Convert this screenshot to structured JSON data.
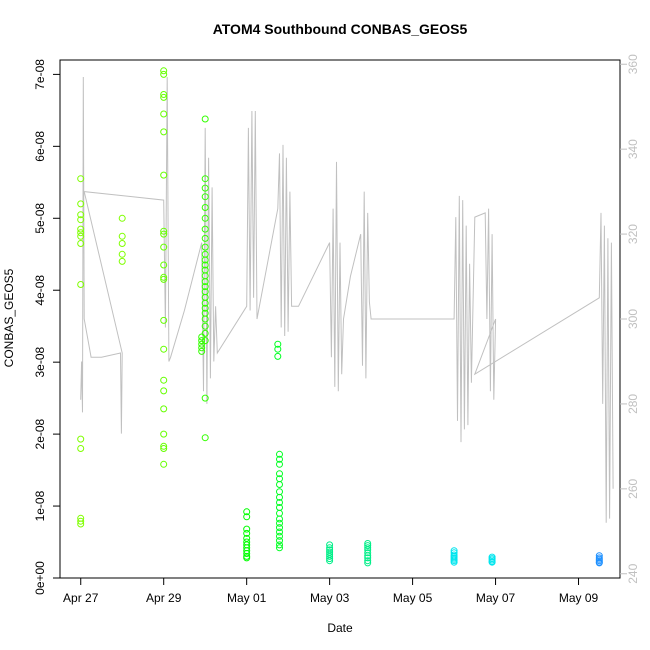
{
  "chart_data": {
    "type": "scatter",
    "title": "ATOM4 Southbound CONBAS_GEOS5",
    "xlabel": "Date",
    "ylabel": "CONBAS_GEOS5",
    "x_ticks": [
      "Apr 27",
      "Apr 29",
      "May 01",
      "May 03",
      "May 05",
      "May 07",
      "May 09"
    ],
    "y_ticks": [
      "0e+00",
      "1e-08",
      "2e-08",
      "3e-08",
      "4e-08",
      "5e-08",
      "6e-08",
      "7e-08"
    ],
    "y2_ticks": [
      "240",
      "260",
      "280",
      "300",
      "320",
      "340",
      "360"
    ],
    "xlim": [
      "2018-04-26T12:00",
      "2018-05-10T00:00"
    ],
    "ylim": [
      0,
      7.2e-08
    ],
    "y2lim": [
      239,
      361
    ],
    "grid": false,
    "secondary_series": {
      "color": "#c0c0c0",
      "axis": "right",
      "points": [
        [
          "2018-04-27T00:00",
          281
        ],
        [
          "2018-04-27T00:30",
          290
        ],
        [
          "2018-04-27T01:00",
          278
        ],
        [
          "2018-04-27T01:30",
          357
        ],
        [
          "2018-04-27T02:00",
          300
        ],
        [
          "2018-04-27T06:00",
          291
        ],
        [
          "2018-04-27T12:00",
          291
        ],
        [
          "2018-04-27T23:00",
          292
        ],
        [
          "2018-04-27T23:30",
          273
        ],
        [
          "2018-04-28T00:00",
          292
        ],
        [
          "2018-04-27T02:00",
          330
        ],
        [
          "2018-04-29T00:00",
          328
        ],
        [
          "2018-04-29T01:00",
          298
        ],
        [
          "2018-04-29T02:00",
          357
        ],
        [
          "2018-04-29T03:00",
          290
        ],
        [
          "2018-04-29T04:00",
          291
        ],
        [
          "2018-04-29T12:00",
          302
        ],
        [
          "2018-04-29T22:00",
          318
        ],
        [
          "2018-04-29T23:00",
          283
        ],
        [
          "2018-04-30T00:00",
          345
        ],
        [
          "2018-04-30T01:00",
          280
        ],
        [
          "2018-04-30T02:00",
          338
        ],
        [
          "2018-04-30T03:00",
          286
        ],
        [
          "2018-04-30T04:00",
          331
        ],
        [
          "2018-04-30T05:00",
          290
        ],
        [
          "2018-04-30T06:00",
          303
        ],
        [
          "2018-04-30T07:00",
          292
        ],
        [
          "2018-05-01T00:00",
          303
        ],
        [
          "2018-05-01T01:00",
          345
        ],
        [
          "2018-05-01T02:00",
          302
        ],
        [
          "2018-05-01T03:00",
          349
        ],
        [
          "2018-05-01T04:00",
          305
        ],
        [
          "2018-05-01T05:00",
          349
        ],
        [
          "2018-05-01T06:00",
          300
        ],
        [
          "2018-05-01T12:00",
          313
        ],
        [
          "2018-05-01T18:00",
          326
        ],
        [
          "2018-05-01T19:00",
          339
        ],
        [
          "2018-05-01T20:00",
          298
        ],
        [
          "2018-05-01T21:00",
          341
        ],
        [
          "2018-05-01T22:00",
          296
        ],
        [
          "2018-05-01T23:00",
          338
        ],
        [
          "2018-05-02T00:00",
          297
        ],
        [
          "2018-05-02T01:00",
          330
        ],
        [
          "2018-05-02T02:00",
          303
        ],
        [
          "2018-05-02T06:00",
          303
        ],
        [
          "2018-05-03T00:00",
          318
        ],
        [
          "2018-05-03T01:00",
          291
        ],
        [
          "2018-05-03T02:00",
          326
        ],
        [
          "2018-05-03T03:00",
          284
        ],
        [
          "2018-05-03T04:00",
          337
        ],
        [
          "2018-05-03T05:00",
          283
        ],
        [
          "2018-05-03T06:00",
          318
        ],
        [
          "2018-05-03T07:00",
          287
        ],
        [
          "2018-05-03T08:00",
          300
        ],
        [
          "2018-05-03T12:00",
          310
        ],
        [
          "2018-05-03T18:00",
          320
        ],
        [
          "2018-05-03T19:00",
          289
        ],
        [
          "2018-05-03T20:00",
          330
        ],
        [
          "2018-05-03T21:00",
          286
        ],
        [
          "2018-05-03T22:00",
          325
        ],
        [
          "2018-05-03T23:00",
          304
        ],
        [
          "2018-05-04T00:00",
          300
        ],
        [
          "2018-05-06T00:00",
          300
        ],
        [
          "2018-05-06T01:00",
          324
        ],
        [
          "2018-05-06T02:00",
          276
        ],
        [
          "2018-05-06T03:00",
          329
        ],
        [
          "2018-05-06T04:00",
          271
        ],
        [
          "2018-05-06T05:00",
          328
        ],
        [
          "2018-05-06T06:00",
          274
        ],
        [
          "2018-05-06T07:00",
          322
        ],
        [
          "2018-05-06T08:00",
          275
        ],
        [
          "2018-05-06T09:00",
          313
        ],
        [
          "2018-05-06T10:00",
          285
        ],
        [
          "2018-05-06T12:00",
          324
        ],
        [
          "2018-05-06T18:00",
          325
        ],
        [
          "2018-05-06T19:00",
          300
        ],
        [
          "2018-05-06T20:00",
          326
        ],
        [
          "2018-05-06T21:00",
          283
        ],
        [
          "2018-05-06T22:00",
          320
        ],
        [
          "2018-05-06T23:00",
          281
        ],
        [
          "2018-05-07T00:00",
          300
        ],
        [
          "2018-05-06T12:00",
          287
        ],
        [
          "2018-05-09T12:00",
          305
        ],
        [
          "2018-05-09T13:00",
          325
        ],
        [
          "2018-05-09T14:00",
          280
        ],
        [
          "2018-05-09T15:00",
          322
        ],
        [
          "2018-05-09T16:00",
          252
        ],
        [
          "2018-05-09T17:00",
          319
        ],
        [
          "2018-05-09T18:00",
          253
        ],
        [
          "2018-05-09T19:00",
          318
        ],
        [
          "2018-05-09T20:00",
          260
        ]
      ]
    },
    "scatter_groups": [
      {
        "color": "#7fff00",
        "x": "2018-04-27T00:00",
        "y": [
          5.55e-08,
          5.2e-08,
          5.05e-08,
          4.98e-08,
          4.85e-08,
          4.8e-08,
          4.75e-08,
          4.65e-08,
          4.08e-08,
          1.93e-08,
          1.8e-08,
          8.3e-09,
          7.9e-09,
          7.5e-09
        ]
      },
      {
        "color": "#7fff00",
        "x": "2018-04-28T00:00",
        "y": [
          5e-08,
          4.75e-08,
          4.65e-08,
          4.5e-08,
          4.4e-08
        ]
      },
      {
        "color": "#66ff00",
        "x": "2018-04-29T00:00",
        "y": [
          7.05e-08,
          7e-08,
          6.72e-08,
          6.68e-08,
          6.45e-08,
          6.2e-08,
          5.6e-08,
          4.82e-08,
          4.78e-08,
          4.6e-08,
          4.35e-08,
          4.18e-08,
          4.15e-08,
          3.58e-08,
          3.18e-08,
          2.75e-08,
          2.6e-08,
          2.35e-08,
          2e-08,
          1.83e-08,
          1.8e-08,
          1.58e-08
        ]
      },
      {
        "color": "#33ff00",
        "x": "2018-04-29T22:00",
        "y": [
          3.35e-08,
          3.3e-08,
          3.25e-08,
          3.2e-08,
          3.15e-08
        ]
      },
      {
        "color": "#33ff00",
        "x": "2018-04-30T00:00",
        "y": [
          6.38e-08,
          5.55e-08,
          5.42e-08,
          5.3e-08,
          5.15e-08,
          5e-08,
          4.85e-08,
          4.72e-08,
          4.6e-08,
          4.5e-08,
          4.42e-08,
          4.35e-08,
          4.28e-08,
          4.2e-08,
          4.12e-08,
          4.05e-08,
          3.98e-08,
          3.9e-08,
          3.82e-08,
          3.75e-08,
          3.68e-08,
          3.6e-08,
          3.5e-08,
          3.4e-08,
          3.3e-08,
          2.5e-08,
          1.95e-08
        ]
      },
      {
        "color": "#00ff00",
        "x": "2018-05-01T00:00",
        "y": [
          9.2e-09,
          8.5e-09,
          6.8e-09,
          6.2e-09,
          5.5e-09,
          5e-09,
          4.6e-09,
          4.2e-09,
          3.8e-09,
          3.4e-09,
          3e-09,
          2.8e-09
        ]
      },
      {
        "color": "#00ff22",
        "x": "2018-05-01T18:00",
        "y": [
          3.25e-08,
          3.18e-08,
          3.08e-08
        ]
      },
      {
        "color": "#00ff22",
        "x": "2018-05-01T19:00",
        "y": [
          1.72e-08,
          1.65e-08,
          1.58e-08,
          1.45e-08,
          1.38e-08,
          1.3e-08,
          1.2e-08,
          1.12e-08,
          1.05e-08,
          9.8e-09,
          9e-09,
          8.2e-09,
          7.6e-09,
          7e-09,
          6.4e-09,
          5.8e-09,
          5.2e-09,
          4.6e-09,
          4.2e-09
        ]
      },
      {
        "color": "#00ee88",
        "x": "2018-05-03T00:00",
        "y": [
          4.6e-09,
          4.2e-09,
          3.9e-09,
          3.6e-09,
          3.3e-09,
          3e-09,
          2.7e-09,
          2.4e-09
        ]
      },
      {
        "color": "#00ee88",
        "x": "2018-05-03T22:00",
        "y": [
          4.8e-09,
          4.5e-09,
          4.2e-09,
          3.9e-09,
          3.5e-09,
          3.1e-09,
          2.8e-09,
          2.4e-09,
          2.1e-09
        ]
      },
      {
        "color": "#00e5ee",
        "x": "2018-05-06T00:00",
        "y": [
          3.8e-09,
          3.5e-09,
          3.2e-09,
          3e-09,
          2.8e-09,
          2.6e-09,
          2.4e-09,
          2.2e-09
        ]
      },
      {
        "color": "#00e5ee",
        "x": "2018-05-06T22:00",
        "y": [
          2.9e-09,
          2.7e-09,
          2.5e-09,
          2.3e-09,
          2.2e-09
        ]
      },
      {
        "color": "#1e90ff",
        "x": "2018-05-09T12:00",
        "y": [
          3.1e-09,
          2.8e-09,
          2.6e-09,
          2.4e-09,
          2.2e-09,
          2.1e-09
        ]
      }
    ]
  }
}
